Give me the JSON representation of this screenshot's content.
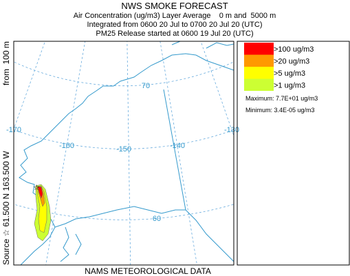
{
  "header": {
    "title": "NWS SMOKE FORECAST",
    "lines": [
      "Air Concentration (ug/m3) Layer Average    0 m and  5000 m",
      "Integrated from 0600 20 Jul to 0700 20 Jul 20 (UTC)",
      "PM25 Release started at 0600 19 Jul 20 (UTC)"
    ]
  },
  "side_label": {
    "source": "Source ☆ 61.500 N 163.500 W",
    "height": "from  100 m"
  },
  "map": {
    "longitude_labels": [
      "-170",
      "-160",
      "-150",
      "-140",
      "-130"
    ],
    "latitude_labels": [
      "70",
      "60"
    ]
  },
  "legend": {
    "items": [
      {
        "label": ">100 ug/m3",
        "color": "#ff0000"
      },
      {
        "label": ">20 ug/m3",
        "color": "#ff9900"
      },
      {
        "label": ">5 ug/m3",
        "color": "#ffff00"
      },
      {
        "label": ">1 ug/m3",
        "color": "#ccff33"
      }
    ],
    "maximum": "Maximum: 7.7E+01 ug/m3",
    "minimum": "Minimum: 3.4E-05 ug/m3"
  },
  "footer": "NAMS METEOROLOGICAL DATA"
}
